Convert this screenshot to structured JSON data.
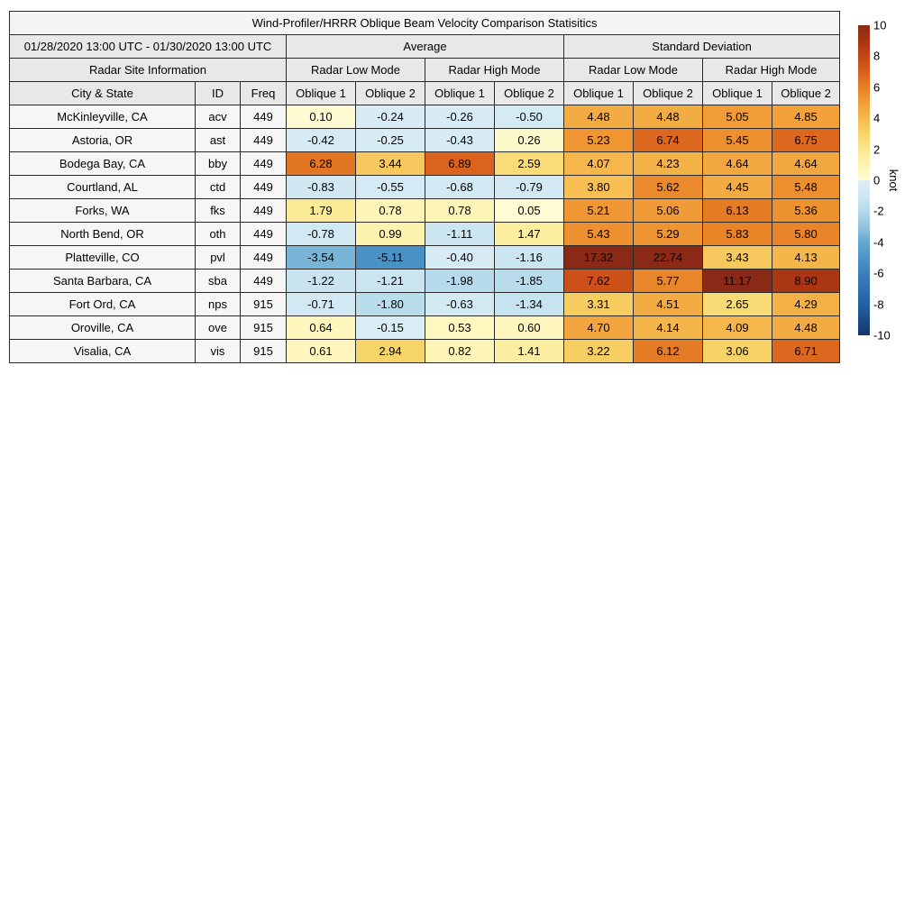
{
  "title": "Wind-Profiler/HRRR Oblique Beam Velocity Comparison Statisitics",
  "header": {
    "date_range": "01/28/2020 13:00 UTC - 01/30/2020 13:00 UTC",
    "avg_label": "Average",
    "std_label": "Standard Deviation",
    "site_info_label": "Radar Site Information",
    "mode_labels": [
      "Radar Low Mode",
      "Radar High Mode",
      "Radar Low Mode",
      "Radar High Mode"
    ],
    "city_label": "City & State",
    "id_label": "ID",
    "freq_label": "Freq",
    "oblique_labels": [
      "Oblique 1",
      "Oblique 2",
      "Oblique 1",
      "Oblique 2",
      "Oblique 1",
      "Oblique 2",
      "Oblique 1",
      "Oblique 2"
    ]
  },
  "chart_data": {
    "type": "heatmap",
    "title": "Wind-Profiler/HRRR Oblique Beam Velocity Comparison Statisitics",
    "date_range": "01/28/2020 13:00 UTC - 01/30/2020 13:00 UTC",
    "column_groups": [
      "Average Radar Low Mode",
      "Average Radar High Mode",
      "Standard Deviation Radar Low Mode",
      "Standard Deviation Radar High Mode"
    ],
    "value_columns": [
      "Oblique 1",
      "Oblique 2",
      "Oblique 1",
      "Oblique 2",
      "Oblique 1",
      "Oblique 2",
      "Oblique 1",
      "Oblique 2"
    ],
    "rows": [
      {
        "city": "McKinleyville, CA",
        "id": "acv",
        "freq": "449",
        "values": [
          "0.10",
          "-0.24",
          "-0.26",
          "-0.50",
          "4.48",
          "4.48",
          "5.05",
          "4.85"
        ]
      },
      {
        "city": "Astoria, OR",
        "id": "ast",
        "freq": "449",
        "values": [
          "-0.42",
          "-0.25",
          "-0.43",
          "0.26",
          "5.23",
          "6.74",
          "5.45",
          "6.75"
        ]
      },
      {
        "city": "Bodega Bay, CA",
        "id": "bby",
        "freq": "449",
        "values": [
          "6.28",
          "3.44",
          "6.89",
          "2.59",
          "4.07",
          "4.23",
          "4.64",
          "4.64"
        ]
      },
      {
        "city": "Courtland, AL",
        "id": "ctd",
        "freq": "449",
        "values": [
          "-0.83",
          "-0.55",
          "-0.68",
          "-0.79",
          "3.80",
          "5.62",
          "4.45",
          "5.48"
        ]
      },
      {
        "city": "Forks, WA",
        "id": "fks",
        "freq": "449",
        "values": [
          "1.79",
          "0.78",
          "0.78",
          "0.05",
          "5.21",
          "5.06",
          "6.13",
          "5.36"
        ]
      },
      {
        "city": "North Bend, OR",
        "id": "oth",
        "freq": "449",
        "values": [
          "-0.78",
          "0.99",
          "-1.11",
          "1.47",
          "5.43",
          "5.29",
          "5.83",
          "5.80"
        ]
      },
      {
        "city": "Platteville, CO",
        "id": "pvl",
        "freq": "449",
        "values": [
          "-3.54",
          "-5.11",
          "-0.40",
          "-1.16",
          "17.32",
          "22.74",
          "3.43",
          "4.13"
        ]
      },
      {
        "city": "Santa Barbara, CA",
        "id": "sba",
        "freq": "449",
        "values": [
          "-1.22",
          "-1.21",
          "-1.98",
          "-1.85",
          "7.62",
          "5.77",
          "11.17",
          "8.90"
        ]
      },
      {
        "city": "Fort Ord, CA",
        "id": "nps",
        "freq": "915",
        "values": [
          "-0.71",
          "-1.80",
          "-0.63",
          "-1.34",
          "3.31",
          "4.51",
          "2.65",
          "4.29"
        ]
      },
      {
        "city": "Oroville, CA",
        "id": "ove",
        "freq": "915",
        "values": [
          "0.64",
          "-0.15",
          "0.53",
          "0.60",
          "4.70",
          "4.14",
          "4.09",
          "4.48"
        ]
      },
      {
        "city": "Visalia, CA",
        "id": "vis",
        "freq": "915",
        "values": [
          "0.61",
          "2.94",
          "0.82",
          "1.41",
          "3.22",
          "6.12",
          "3.06",
          "6.71"
        ]
      }
    ],
    "colorbar": {
      "label": "knot",
      "min": -10,
      "max": 10,
      "ticks": [
        "10",
        "8",
        "6",
        "4",
        "2",
        "0",
        "-2",
        "-4",
        "-6",
        "-8",
        "-10"
      ]
    },
    "color_scale": {
      "positive_stops": [
        [
          0,
          "#fffbd5"
        ],
        [
          1,
          "#fdf3ae"
        ],
        [
          2,
          "#fbe88f"
        ],
        [
          3,
          "#f8d468"
        ],
        [
          4,
          "#f5b94e"
        ],
        [
          5,
          "#f19d38"
        ],
        [
          6,
          "#e77f24"
        ],
        [
          7,
          "#d85f1d"
        ],
        [
          8,
          "#c44614"
        ],
        [
          9,
          "#a83413"
        ],
        [
          10,
          "#8a2a16"
        ]
      ],
      "negative_stops": [
        [
          0,
          "#dbeef6"
        ],
        [
          1,
          "#cfe7f2"
        ],
        [
          2,
          "#b5daeb"
        ],
        [
          3,
          "#93c5df"
        ],
        [
          4,
          "#63a8d0"
        ],
        [
          5,
          "#4c94c6"
        ],
        [
          6,
          "#3a80ba"
        ],
        [
          8,
          "#2461a4"
        ],
        [
          10,
          "#15366a"
        ]
      ]
    }
  }
}
